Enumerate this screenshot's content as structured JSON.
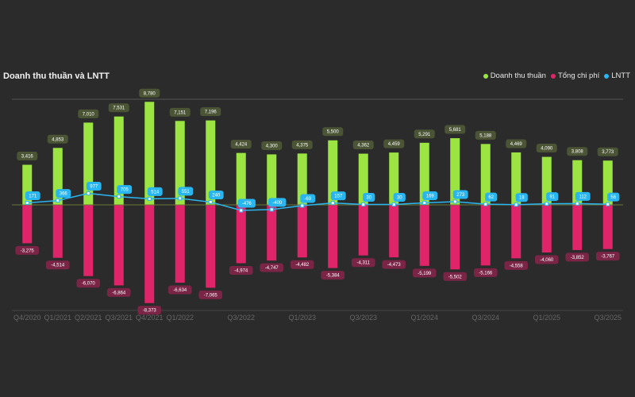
{
  "chart_data": {
    "type": "bar",
    "title": "Doanh thu thuần và LNTT",
    "legend_position": "top-right",
    "ylim": [
      -9000,
      9000
    ],
    "grid": true,
    "categories": [
      "Q4/2020",
      "Q1/2021",
      "Q2/2021",
      "Q3/2021",
      "Q4/2021",
      "Q1/2022",
      "Q2/2022",
      "Q3/2022",
      "Q4/2022",
      "Q1/2023",
      "Q2/2023",
      "Q3/2023",
      "Q4/2023",
      "Q1/2024",
      "Q2/2024",
      "Q3/2024",
      "Q4/2024",
      "Q1/2025",
      "Q2/2025",
      "Q3/2025"
    ],
    "visible_tick_labels": [
      "Q4/2020",
      "Q1/2021",
      "Q2/2021",
      "Q3/2021",
      "Q4/2021",
      "Q1/2022",
      "Q3/2022",
      "Q1/2023",
      "Q3/2023",
      "Q1/2024",
      "Q3/2024",
      "Q1/2025",
      "Q3/2025"
    ],
    "series": [
      {
        "name": "Doanh thu thuần",
        "type": "bar",
        "color": "#9be442",
        "label_bg": "#4b5535",
        "values": [
          3416,
          4853,
          7010,
          7531,
          8780,
          7151,
          7196,
          4424,
          4300,
          4375,
          5500,
          4362,
          4459,
          5291,
          5681,
          5188,
          4469,
          4090,
          3808,
          3773
        ]
      },
      {
        "name": "Tổng chi phí",
        "type": "bar",
        "color": "#e0246a",
        "label_bg": "#7a2446",
        "values": [
          -3275,
          -4514,
          -6070,
          -6864,
          -8373,
          -6634,
          -7065,
          -4974,
          -4747,
          -4482,
          -5384,
          -4311,
          -4473,
          -5199,
          -5502,
          -5166,
          -4558,
          -4060,
          -3852,
          -3767
        ]
      },
      {
        "name": "LNTT",
        "type": "line",
        "color": "#29b6f0",
        "label_bg": "#29b6f0",
        "values": [
          171,
          366,
          977,
          705,
          514,
          551,
          240,
          -476,
          -400,
          -69,
          157,
          30,
          30,
          169,
          273,
          62,
          18,
          91,
          112,
          56
        ]
      }
    ]
  }
}
